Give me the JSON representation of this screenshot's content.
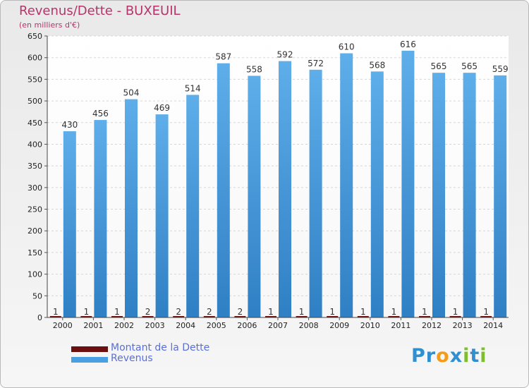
{
  "header": {
    "title": "Revenus/Dette - BUXEUIL",
    "subtitle": "(en milliers d'€)"
  },
  "colors": {
    "revenus": "#4a9fe0",
    "dette": "#6b0f0f",
    "title": "#b5356a",
    "legend_text": "#5a6fd6"
  },
  "legend": {
    "items": [
      {
        "label": "Montant de la Dette",
        "color": "#6b0f0f"
      },
      {
        "label": "Revenus",
        "color": "#4a9fe0"
      }
    ]
  },
  "logo": {
    "text": "Proxiti",
    "letters": [
      {
        "ch": "P",
        "color": "#2f8fd1"
      },
      {
        "ch": "r",
        "color": "#2f8fd1"
      },
      {
        "ch": "o",
        "color": "#f39c1c"
      },
      {
        "ch": "x",
        "color": "#2f8fd1"
      },
      {
        "ch": "i",
        "color": "#7dbd2e"
      },
      {
        "ch": "t",
        "color": "#2f8fd1"
      },
      {
        "ch": "i",
        "color": "#7dbd2e"
      }
    ]
  },
  "chart_data": {
    "type": "bar",
    "title": "Revenus/Dette - BUXEUIL",
    "subtitle": "(en milliers d'€)",
    "xlabel": "",
    "ylabel": "",
    "ylim": [
      0,
      650
    ],
    "yticks": [
      0,
      50,
      100,
      150,
      200,
      250,
      300,
      350,
      400,
      450,
      500,
      550,
      600,
      650
    ],
    "grid": true,
    "legend_position": "bottom-left",
    "categories": [
      "2000",
      "2001",
      "2002",
      "2003",
      "2004",
      "2005",
      "2006",
      "2007",
      "2008",
      "2009",
      "2010",
      "2011",
      "2012",
      "2013",
      "2014"
    ],
    "series": [
      {
        "name": "Montant de la Dette",
        "color": "#6b0f0f",
        "values": [
          1,
          1,
          1,
          2,
          2,
          2,
          2,
          1,
          1,
          1,
          1,
          1,
          1,
          1,
          1
        ]
      },
      {
        "name": "Revenus",
        "color": "#4a9fe0",
        "values": [
          430,
          456,
          504,
          469,
          514,
          587,
          558,
          592,
          572,
          610,
          568,
          616,
          565,
          565,
          559
        ]
      }
    ]
  }
}
